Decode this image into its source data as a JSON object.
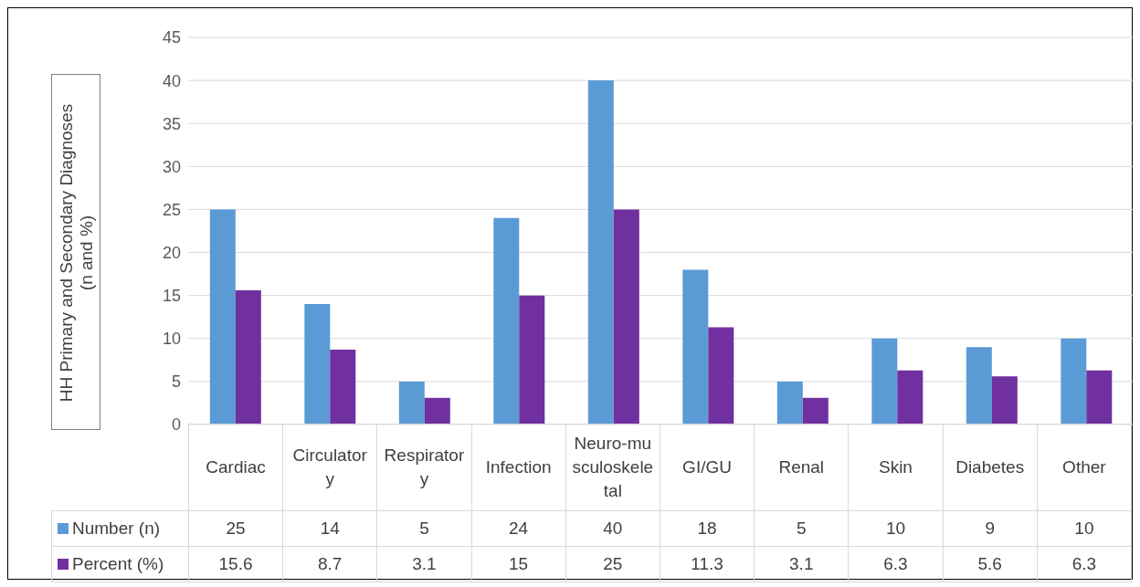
{
  "chart_data": {
    "type": "bar",
    "ylabel": "HH Primary and Secondary Diagnoses (n and %)",
    "categories": [
      "Cardiac",
      "Circulatory",
      "Respiratory",
      "Infection",
      "Neuro-musculoskeletal",
      "GI/GU",
      "Renal",
      "Skin",
      "Diabetes",
      "Other"
    ],
    "series": [
      {
        "name": "Number (n)",
        "color": "#5b9bd5",
        "values": [
          25,
          14,
          5,
          24,
          40,
          18,
          5,
          10,
          9,
          10
        ]
      },
      {
        "name": "Percent (%)",
        "color": "#7030a0",
        "values": [
          15.6,
          8.7,
          3.1,
          15,
          25,
          11.3,
          3.1,
          6.3,
          5.6,
          6.3
        ]
      }
    ],
    "ylim": [
      0,
      45
    ],
    "yticks": [
      0,
      5,
      10,
      15,
      20,
      25,
      30,
      35,
      40,
      45
    ],
    "grid": "y",
    "legend": "bottom",
    "data_labels": true
  }
}
